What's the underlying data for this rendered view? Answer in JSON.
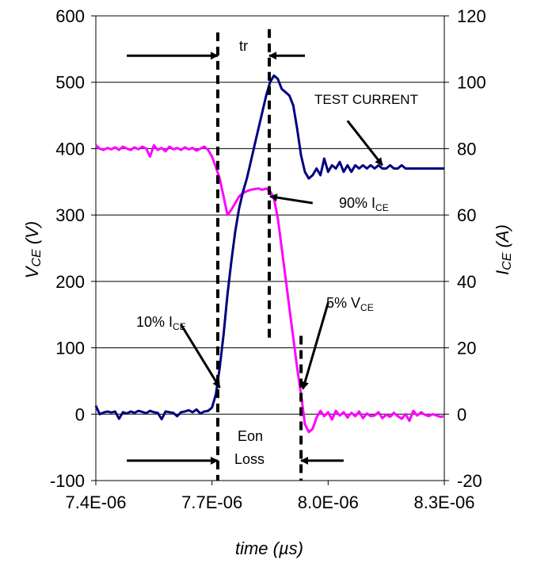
{
  "chart_data": {
    "type": "line",
    "x": {
      "label": "time (µs)",
      "range": [
        7.4e-06,
        8.3e-06
      ],
      "ticks": [
        7.4e-06,
        7.7e-06,
        8e-06,
        8.3e-06
      ],
      "tick_labels": [
        "7.4E-06",
        "7.7E-06",
        "8.0E-06",
        "8.3E-06"
      ]
    },
    "y_left": {
      "label": "V",
      "label_sub": "CE",
      "label_suffix": " (V)",
      "range": [
        -100,
        600
      ],
      "ticks": [
        -100,
        0,
        100,
        200,
        300,
        400,
        500,
        600
      ],
      "tick_labels": [
        "-100",
        "0",
        "100",
        "200",
        "300",
        "400",
        "500",
        "600"
      ]
    },
    "y_right": {
      "label": "I",
      "label_sub": "CE",
      "label_suffix": " (A)",
      "range": [
        -20,
        120
      ],
      "ticks": [
        -20,
        0,
        20,
        40,
        60,
        80,
        100,
        120
      ],
      "tick_labels": [
        "-20",
        "0",
        "20",
        "40",
        "60",
        "80",
        "100",
        "120"
      ]
    },
    "grid": "horizontal",
    "series": [
      {
        "axis": "left",
        "color": "#ff00ff",
        "points": [
          [
            7.4e-06,
            405
          ],
          [
            7.41e-06,
            400
          ],
          [
            7.42e-06,
            398
          ],
          [
            7.43e-06,
            401
          ],
          [
            7.44e-06,
            399
          ],
          [
            7.45e-06,
            402
          ],
          [
            7.46e-06,
            398
          ],
          [
            7.47e-06,
            403
          ],
          [
            7.48e-06,
            400
          ],
          [
            7.49e-06,
            398
          ],
          [
            7.5e-06,
            402
          ],
          [
            7.51e-06,
            399
          ],
          [
            7.52e-06,
            403
          ],
          [
            7.53e-06,
            400
          ],
          [
            7.54e-06,
            388
          ],
          [
            7.55e-06,
            405
          ],
          [
            7.56e-06,
            398
          ],
          [
            7.57e-06,
            401
          ],
          [
            7.58e-06,
            396
          ],
          [
            7.59e-06,
            403
          ],
          [
            7.6e-06,
            399
          ],
          [
            7.61e-06,
            401
          ],
          [
            7.62e-06,
            398
          ],
          [
            7.63e-06,
            402
          ],
          [
            7.64e-06,
            399
          ],
          [
            7.65e-06,
            401
          ],
          [
            7.66e-06,
            397
          ],
          [
            7.67e-06,
            400
          ],
          [
            7.68e-06,
            403
          ],
          [
            7.69e-06,
            398
          ],
          [
            7.7e-06,
            388
          ],
          [
            7.71e-06,
            372
          ],
          [
            7.72e-06,
            355
          ],
          [
            7.73e-06,
            328
          ],
          [
            7.74e-06,
            300
          ],
          [
            7.75e-06,
            308
          ],
          [
            7.76e-06,
            318
          ],
          [
            7.77e-06,
            328
          ],
          [
            7.78e-06,
            333
          ],
          [
            7.79e-06,
            336
          ],
          [
            7.8e-06,
            338
          ],
          [
            7.81e-06,
            339
          ],
          [
            7.82e-06,
            340
          ],
          [
            7.83e-06,
            338
          ],
          [
            7.84e-06,
            340
          ],
          [
            7.85e-06,
            336
          ],
          [
            7.86e-06,
            325
          ],
          [
            7.87e-06,
            295
          ],
          [
            7.88e-06,
            250
          ],
          [
            7.89e-06,
            205
          ],
          [
            7.9e-06,
            160
          ],
          [
            7.91e-06,
            115
          ],
          [
            7.92e-06,
            70
          ],
          [
            7.93e-06,
            30
          ],
          [
            7.94e-06,
            -15
          ],
          [
            7.95e-06,
            -27
          ],
          [
            7.96e-06,
            -22
          ],
          [
            7.97e-06,
            -5
          ],
          [
            7.98e-06,
            5
          ],
          [
            7.99e-06,
            -3
          ],
          [
            8e-06,
            3
          ],
          [
            8.01e-06,
            -8
          ],
          [
            8.02e-06,
            5
          ],
          [
            8.03e-06,
            -2
          ],
          [
            8.04e-06,
            3
          ],
          [
            8.05e-06,
            -5
          ],
          [
            8.06e-06,
            2
          ],
          [
            8.07e-06,
            -3
          ],
          [
            8.08e-06,
            4
          ],
          [
            8.09e-06,
            -6
          ],
          [
            8.1e-06,
            1
          ],
          [
            8.11e-06,
            -3
          ],
          [
            8.12e-06,
            -2
          ],
          [
            8.13e-06,
            3
          ],
          [
            8.14e-06,
            -6
          ],
          [
            8.15e-06,
            -1
          ],
          [
            8.16e-06,
            -4
          ],
          [
            8.17e-06,
            2
          ],
          [
            8.18e-06,
            -3
          ],
          [
            8.19e-06,
            -7
          ],
          [
            8.2e-06,
            0
          ],
          [
            8.21e-06,
            -10
          ],
          [
            8.22e-06,
            5
          ],
          [
            8.23e-06,
            -2
          ],
          [
            8.24e-06,
            3
          ],
          [
            8.25e-06,
            -1
          ],
          [
            8.26e-06,
            -3
          ],
          [
            8.27e-06,
            0
          ],
          [
            8.28e-06,
            -2
          ],
          [
            8.29e-06,
            -4
          ],
          [
            8.3e-06,
            -3
          ]
        ]
      },
      {
        "axis": "right",
        "color": "#000080",
        "points": [
          [
            7.4e-06,
            2.5
          ],
          [
            7.41e-06,
            0
          ],
          [
            7.42e-06,
            0.5
          ],
          [
            7.43e-06,
            0.8
          ],
          [
            7.44e-06,
            0.5
          ],
          [
            7.45e-06,
            0.8
          ],
          [
            7.46e-06,
            -1.4
          ],
          [
            7.47e-06,
            0.6
          ],
          [
            7.48e-06,
            0.2
          ],
          [
            7.49e-06,
            0.8
          ],
          [
            7.5e-06,
            0.4
          ],
          [
            7.51e-06,
            1.0
          ],
          [
            7.52e-06,
            0.7
          ],
          [
            7.53e-06,
            0.3
          ],
          [
            7.54e-06,
            1.0
          ],
          [
            7.55e-06,
            0.6
          ],
          [
            7.56e-06,
            0.4
          ],
          [
            7.57e-06,
            -1.5
          ],
          [
            7.58e-06,
            0.8
          ],
          [
            7.59e-06,
            0.6
          ],
          [
            7.6e-06,
            0.4
          ],
          [
            7.61e-06,
            -0.6
          ],
          [
            7.62e-06,
            0.6
          ],
          [
            7.63e-06,
            0.8
          ],
          [
            7.64e-06,
            1.2
          ],
          [
            7.65e-06,
            0.6
          ],
          [
            7.66e-06,
            1.4
          ],
          [
            7.67e-06,
            0.2
          ],
          [
            7.68e-06,
            0.8
          ],
          [
            7.69e-06,
            1.0
          ],
          [
            7.7e-06,
            2.0
          ],
          [
            7.71e-06,
            6.0
          ],
          [
            7.72e-06,
            14
          ],
          [
            7.73e-06,
            24
          ],
          [
            7.74e-06,
            36
          ],
          [
            7.75e-06,
            46
          ],
          [
            7.76e-06,
            55
          ],
          [
            7.77e-06,
            62
          ],
          [
            7.78e-06,
            67
          ],
          [
            7.79e-06,
            71
          ],
          [
            7.8e-06,
            76
          ],
          [
            7.81e-06,
            81
          ],
          [
            7.82e-06,
            86
          ],
          [
            7.83e-06,
            91
          ],
          [
            7.84e-06,
            96
          ],
          [
            7.85e-06,
            100
          ],
          [
            7.86e-06,
            102
          ],
          [
            7.87e-06,
            101
          ],
          [
            7.88e-06,
            98
          ],
          [
            7.89e-06,
            97
          ],
          [
            7.9e-06,
            96
          ],
          [
            7.91e-06,
            93
          ],
          [
            7.92e-06,
            86
          ],
          [
            7.93e-06,
            78
          ],
          [
            7.94e-06,
            73
          ],
          [
            7.95e-06,
            71
          ],
          [
            7.96e-06,
            72
          ],
          [
            7.97e-06,
            74
          ],
          [
            7.98e-06,
            72
          ],
          [
            7.99e-06,
            77
          ],
          [
            8e-06,
            73
          ],
          [
            8.01e-06,
            75
          ],
          [
            8.02e-06,
            74
          ],
          [
            8.03e-06,
            76
          ],
          [
            8.04e-06,
            73
          ],
          [
            8.05e-06,
            75
          ],
          [
            8.06e-06,
            73
          ],
          [
            8.07e-06,
            75
          ],
          [
            8.08e-06,
            74
          ],
          [
            8.09e-06,
            75
          ],
          [
            8.1e-06,
            74
          ],
          [
            8.11e-06,
            75
          ],
          [
            8.12e-06,
            74
          ],
          [
            8.13e-06,
            75
          ],
          [
            8.14e-06,
            74
          ],
          [
            8.15e-06,
            74
          ],
          [
            8.16e-06,
            75
          ],
          [
            8.17e-06,
            74
          ],
          [
            8.18e-06,
            74
          ],
          [
            8.19e-06,
            75
          ],
          [
            8.2e-06,
            74
          ],
          [
            8.21e-06,
            74
          ],
          [
            8.22e-06,
            74
          ],
          [
            8.23e-06,
            74
          ],
          [
            8.24e-06,
            74
          ],
          [
            8.25e-06,
            74
          ],
          [
            8.26e-06,
            74
          ],
          [
            8.27e-06,
            74
          ],
          [
            8.28e-06,
            74
          ],
          [
            8.29e-06,
            74
          ],
          [
            8.3e-06,
            74
          ]
        ]
      }
    ],
    "markers": {
      "vlines_dashed": [
        {
          "x": 7.715e-06,
          "y_from": -100,
          "y_to": 575
        },
        {
          "x": 7.848e-06,
          "y_from": 115,
          "y_to": 580
        },
        {
          "x": 7.93e-06,
          "y_from": -100,
          "y_to": 118
        }
      ],
      "arrows": [
        {
          "from": [
            7.48e-06,
            540
          ],
          "to": [
            7.715e-06,
            540
          ]
        },
        {
          "from": [
            7.94e-06,
            540
          ],
          "to": [
            7.848e-06,
            540
          ]
        },
        {
          "from": [
            7.48e-06,
            -70
          ],
          "to": [
            7.715e-06,
            -70
          ]
        },
        {
          "from": [
            8.04e-06,
            -70
          ],
          "to": [
            7.93e-06,
            -70
          ]
        },
        {
          "from": [
            7.96e-06,
            318
          ],
          "to": [
            7.85e-06,
            328
          ]
        },
        {
          "from": [
            8.05e-06,
            442
          ],
          "to": [
            8.14e-06,
            375
          ]
        },
        {
          "from": [
            7.62e-06,
            135
          ],
          "to": [
            7.72e-06,
            40
          ]
        },
        {
          "from": [
            8e-06,
            168
          ],
          "to": [
            7.935e-06,
            38
          ]
        }
      ]
    },
    "annotations": {
      "tr": "tr",
      "test_current": "TEST CURRENT",
      "ice90_a": "90%  I",
      "ice90_b": "CE",
      "vce5_a": "5% V",
      "vce5_b": "CE",
      "ice10_a": "10%  I",
      "ice10_b": "CE",
      "eon": "Eon",
      "loss": "Loss"
    }
  }
}
